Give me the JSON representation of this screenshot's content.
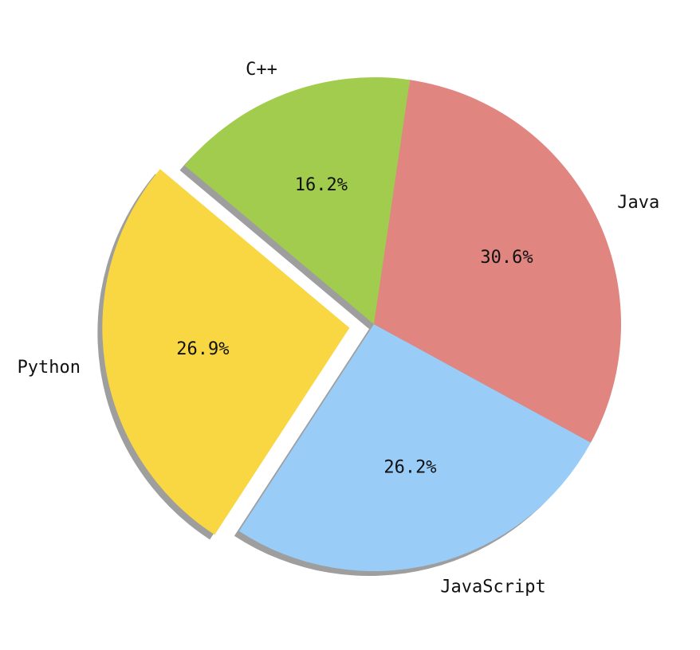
{
  "chart_data": {
    "type": "pie",
    "title": "",
    "categories": [
      "Python",
      "JavaScript",
      "Java",
      "C++"
    ],
    "values": [
      26.9,
      26.2,
      30.6,
      16.2
    ],
    "percent_labels": [
      "26.9%",
      "26.2%",
      "30.6%",
      "16.2%"
    ],
    "colors": [
      "#f8d742",
      "#99ccf7",
      "#e08580",
      "#a1cc4d"
    ],
    "explode": [
      0.1,
      0,
      0,
      0
    ],
    "shadow": true,
    "legend": "none",
    "start_angle_deg": 140,
    "direction": "counterclockwise"
  }
}
